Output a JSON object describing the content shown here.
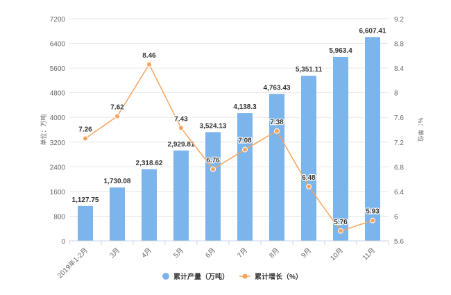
{
  "chart_data": {
    "type": "bar",
    "categories": [
      "2019年1-2月",
      "3月",
      "4月",
      "5月",
      "6月",
      "7月",
      "8月",
      "9月",
      "10月",
      "11月"
    ],
    "series": [
      {
        "name": "累计产量（万吨）",
        "type": "bar",
        "axis": "left",
        "color": "#7cb5ec",
        "values": [
          1127.75,
          1730.08,
          2318.62,
          2929.81,
          3524.13,
          4138.3,
          4763.43,
          5351.11,
          5963.4,
          6607.41
        ],
        "labels": [
          "1,127.75",
          "1,730.08",
          "2,318.62",
          "2,929.81",
          "3,524.13",
          "4,138.3",
          "4,763.43",
          "5,351.11",
          "5,963.4",
          "6,607.41"
        ]
      },
      {
        "name": "累计增长（%）",
        "type": "line",
        "axis": "right",
        "color": "#f7a35c",
        "values": [
          7.26,
          7.62,
          8.46,
          7.43,
          6.76,
          7.08,
          7.38,
          6.48,
          5.76,
          5.93
        ],
        "labels": [
          "7.26",
          "7.62",
          "8.46",
          "7.43",
          "6.76",
          "7.08",
          "7.38",
          "6.48",
          "5.76",
          "5.93"
        ]
      }
    ],
    "y_left": {
      "label": "单位：万吨",
      "range": [
        0,
        7200
      ],
      "ticks": [
        0,
        800,
        1600,
        2400,
        3200,
        4000,
        4800,
        5600,
        6400,
        7200
      ]
    },
    "y_right": {
      "label": "%：单位",
      "range": [
        5.6,
        9.2
      ],
      "ticks": [
        "5.6",
        "6",
        "6.4",
        "6.8",
        "7.2",
        "7.6",
        "8",
        "8.4",
        "8.8",
        "9.2"
      ]
    },
    "grid": true,
    "legend_position": "bottom"
  }
}
